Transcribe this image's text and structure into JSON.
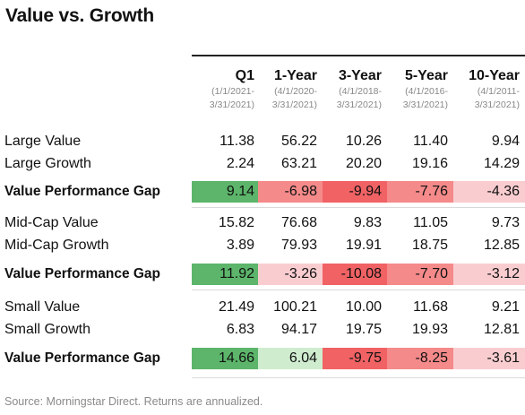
{
  "title": "Value vs. Growth",
  "chart_data": {
    "type": "table",
    "title": "Value vs. Growth",
    "columns": [
      {
        "name": "Q1",
        "range_line1": "(1/1/2021-",
        "range_line2": "3/31/2021)"
      },
      {
        "name": "1-Year",
        "range_line1": "(4/1/2020-",
        "range_line2": "3/31/2021)"
      },
      {
        "name": "3-Year",
        "range_line1": "(4/1/2018-",
        "range_line2": "3/31/2021)"
      },
      {
        "name": "5-Year",
        "range_line1": "(4/1/2016-",
        "range_line2": "3/31/2021)"
      },
      {
        "name": "10-Year",
        "range_line1": "(4/1/2011-",
        "range_line2": "3/31/2021)"
      }
    ],
    "rows": [
      {
        "label": "Large Value",
        "kind": "value",
        "values": [
          "11.38",
          "56.22",
          "10.26",
          "11.40",
          "9.94"
        ]
      },
      {
        "label": "Large Growth",
        "kind": "value",
        "values": [
          "2.24",
          "63.21",
          "20.20",
          "19.16",
          "14.29"
        ]
      },
      {
        "label": "Value Performance Gap",
        "kind": "gap",
        "values": [
          "9.14",
          "-6.98",
          "-9.94",
          "-7.76",
          "-4.36"
        ]
      },
      {
        "label": "Mid-Cap Value",
        "kind": "value",
        "values": [
          "15.82",
          "76.68",
          "9.83",
          "11.05",
          "9.73"
        ]
      },
      {
        "label": "Mid-Cap Growth",
        "kind": "value",
        "values": [
          "3.89",
          "79.93",
          "19.91",
          "18.75",
          "12.85"
        ]
      },
      {
        "label": "Value Performance Gap",
        "kind": "gap",
        "values": [
          "11.92",
          "-3.26",
          "-10.08",
          "-7.70",
          "-3.12"
        ]
      },
      {
        "label": "Small Value",
        "kind": "value",
        "values": [
          "21.49",
          "100.21",
          "10.00",
          "11.68",
          "9.21"
        ]
      },
      {
        "label": "Small Growth",
        "kind": "value",
        "values": [
          "6.83",
          "94.17",
          "19.75",
          "19.93",
          "12.81"
        ]
      },
      {
        "label": "Value Performance Gap",
        "kind": "gap",
        "values": [
          "14.66",
          "6.04",
          "-9.75",
          "-8.25",
          "-3.61"
        ]
      }
    ],
    "colors": {
      "positive_strong": "#5cb56a",
      "positive_light": "#cfeccf",
      "negative_strong": "#f16264",
      "negative_mid": "#f58a8a",
      "negative_light": "#f9cdd0"
    }
  },
  "source": "Source: Morningstar Direct. Returns are annualized."
}
